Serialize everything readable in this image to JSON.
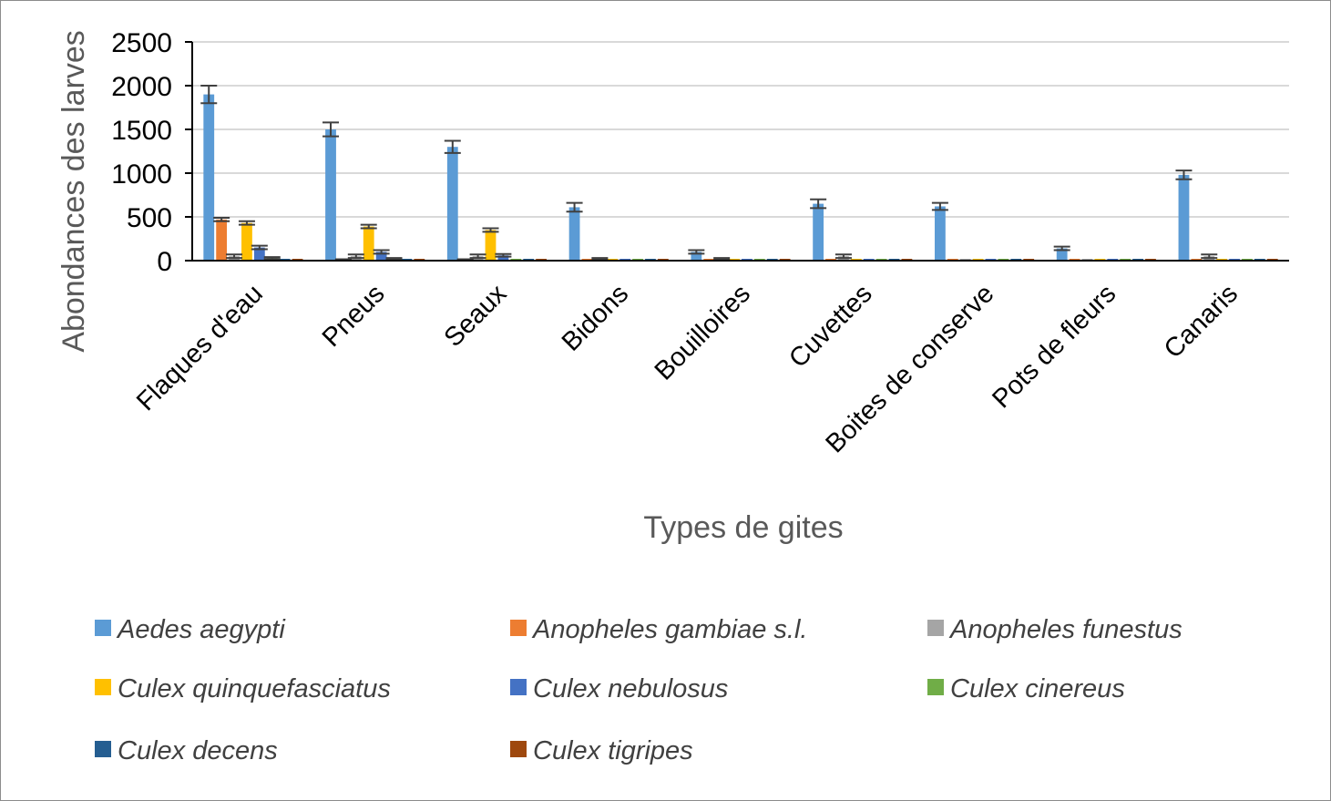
{
  "chart_data": {
    "type": "bar",
    "title": "",
    "xlabel": "Types de gites",
    "ylabel": "Abondances des larves",
    "ylim": [
      0,
      2500
    ],
    "yticks": [
      0,
      500,
      1000,
      1500,
      2000,
      2500
    ],
    "grid": true,
    "legend_position": "bottom",
    "error_bars": true,
    "categories": [
      "Flaques d'eau",
      "Pneus",
      "Seaux",
      "Bidons",
      "Bouilloires",
      "Cuvettes",
      "Boites de conserve",
      "Pots de fleurs",
      "Canaris"
    ],
    "series": [
      {
        "name": "Aedes aegypti",
        "color": "#5B9BD5",
        "values": [
          1900,
          1500,
          1300,
          610,
          100,
          650,
          620,
          140,
          980
        ],
        "errors": [
          100,
          80,
          70,
          50,
          20,
          50,
          40,
          20,
          50
        ]
      },
      {
        "name": "Anopheles gambiae s.l.",
        "color": "#ED7D31",
        "values": [
          470,
          10,
          10,
          0,
          0,
          0,
          0,
          0,
          0
        ],
        "errors": [
          20,
          5,
          5,
          0,
          0,
          0,
          0,
          0,
          0
        ]
      },
      {
        "name": "Anopheles funestus",
        "color": "#A5A5A5",
        "values": [
          50,
          50,
          50,
          20,
          20,
          50,
          0,
          0,
          50
        ],
        "errors": [
          20,
          20,
          20,
          10,
          10,
          20,
          0,
          0,
          20
        ]
      },
      {
        "name": "Culex quinquefasciatus",
        "color": "#FFC000",
        "values": [
          430,
          390,
          350,
          0,
          0,
          0,
          0,
          0,
          0
        ],
        "errors": [
          20,
          20,
          20,
          0,
          0,
          0,
          0,
          0,
          0
        ]
      },
      {
        "name": "Culex nebulosus",
        "color": "#4472C4",
        "values": [
          150,
          100,
          60,
          0,
          0,
          0,
          0,
          0,
          0
        ],
        "errors": [
          20,
          20,
          15,
          0,
          0,
          0,
          0,
          0,
          0
        ]
      },
      {
        "name": "Culex cinereus",
        "color": "#70AD47",
        "values": [
          30,
          20,
          0,
          0,
          0,
          0,
          0,
          0,
          0
        ],
        "errors": [
          10,
          10,
          0,
          0,
          0,
          0,
          0,
          0,
          0
        ]
      },
      {
        "name": "Culex decens",
        "color": "#255E91",
        "values": [
          0,
          0,
          0,
          0,
          0,
          0,
          0,
          0,
          0
        ],
        "errors": [
          0,
          0,
          0,
          0,
          0,
          0,
          0,
          0,
          0
        ]
      },
      {
        "name": "Culex tigripes",
        "color": "#9E480E",
        "values": [
          0,
          0,
          0,
          0,
          0,
          0,
          0,
          0,
          0
        ],
        "errors": [
          0,
          0,
          0,
          0,
          0,
          0,
          0,
          0,
          0
        ]
      }
    ]
  }
}
